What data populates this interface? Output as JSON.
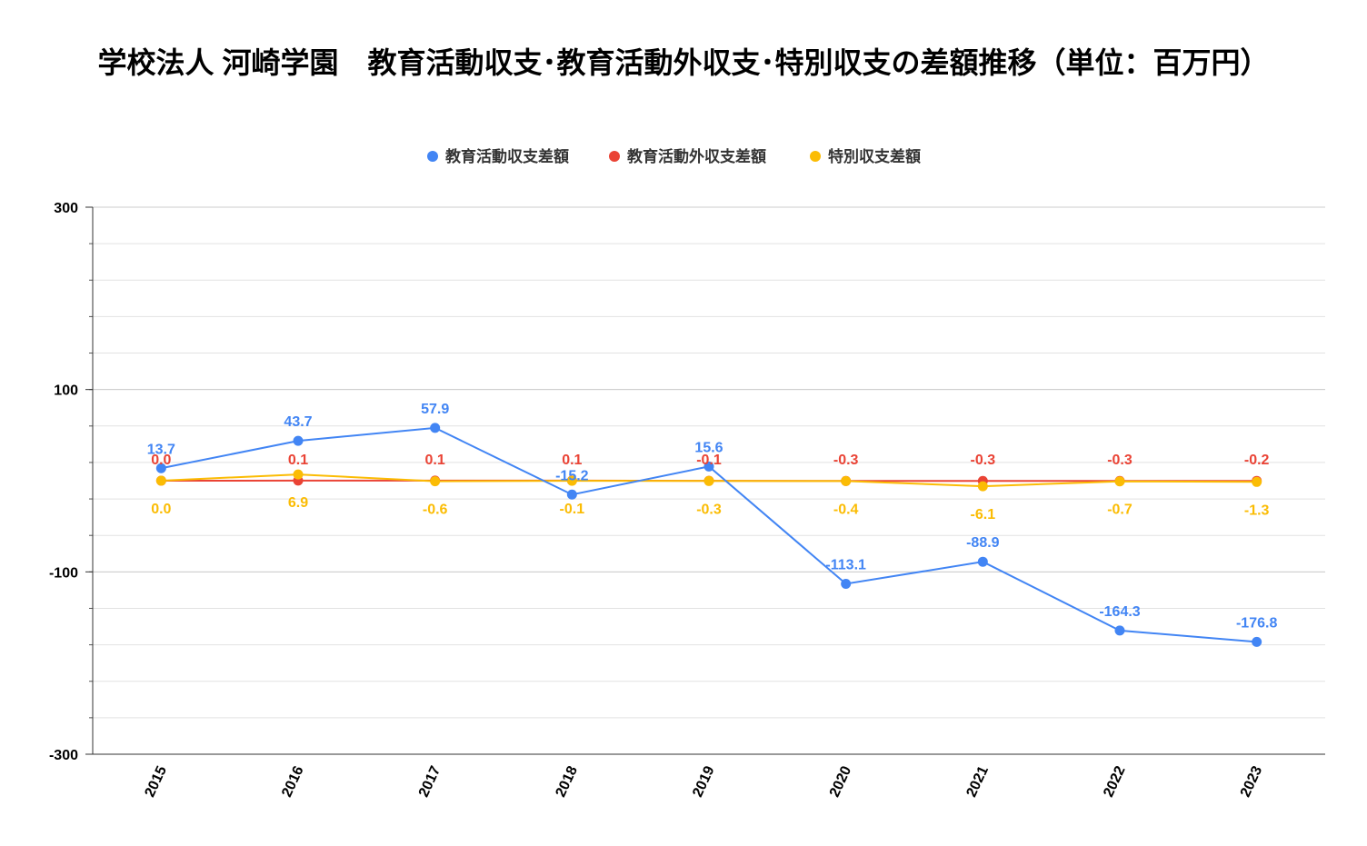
{
  "chart_data": {
    "type": "line",
    "title": "学校法人 河崎学園　教育活動収支･教育活動外収支･特別収支の差額推移（単位：百万円）",
    "categories": [
      "2015",
      "2016",
      "2017",
      "2018",
      "2019",
      "2020",
      "2021",
      "2022",
      "2023"
    ],
    "series": [
      {
        "name": "教育活動収支差額",
        "color": "#4285F4",
        "values": [
          13.7,
          43.7,
          57.9,
          -15.2,
          15.6,
          -113.1,
          -88.9,
          -164.3,
          -176.8
        ],
        "labels": [
          "13.7",
          "43.7",
          "57.9",
          "-15.2",
          "15.6",
          "-113.1",
          "-88.9",
          "-164.3",
          "-176.8"
        ]
      },
      {
        "name": "教育活動外収支差額",
        "color": "#EA4335",
        "values": [
          0.0,
          0.1,
          0.1,
          0.1,
          -0.1,
          -0.3,
          -0.3,
          -0.3,
          -0.2
        ],
        "labels": [
          "0.0",
          "0.1",
          "0.1",
          "0.1",
          "-0.1",
          "-0.3",
          "-0.3",
          "-0.3",
          "-0.2"
        ]
      },
      {
        "name": "特別収支差額",
        "color": "#FBBC04",
        "values": [
          0.0,
          6.9,
          -0.6,
          -0.1,
          -0.3,
          -0.4,
          -6.1,
          -0.7,
          -1.3
        ],
        "labels": [
          "0.0",
          "6.9",
          "-0.6",
          "-0.1",
          "-0.3",
          "-0.4",
          "-6.1",
          "-0.7",
          "-1.3"
        ]
      }
    ],
    "ylim": [
      -300,
      300
    ],
    "yticks": [
      "300",
      "100",
      "-100",
      "-300"
    ],
    "ytick_values": [
      300,
      100,
      -100,
      -300
    ],
    "minor_grid_step": 40,
    "legend_position": "top",
    "grid": true
  }
}
